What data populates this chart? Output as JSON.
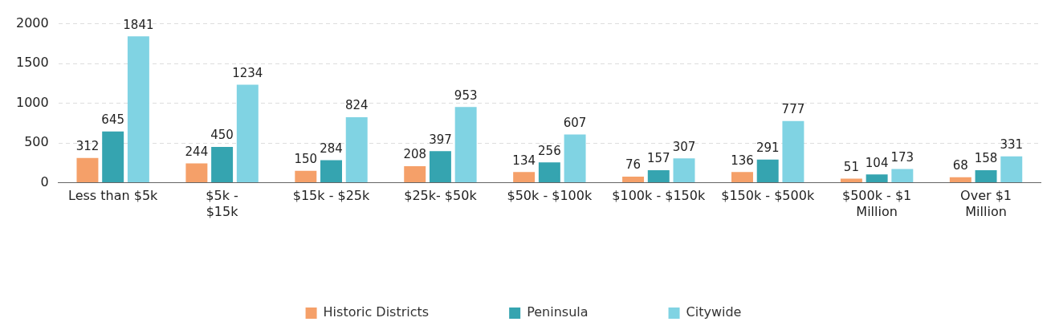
{
  "chart_data": {
    "type": "bar",
    "categories": [
      "Less than $5k",
      "$5k -\n$15k",
      "$15k - $25k",
      "$25k- $50k",
      "$50k - $100k",
      "$100k - $150k",
      "$150k - $500k",
      "$500k - $1\nMillion",
      "Over $1\nMillion"
    ],
    "series": [
      {
        "name": "Historic Districts",
        "color": "#f5a069",
        "values": [
          312,
          244,
          150,
          208,
          134,
          76,
          136,
          51,
          68
        ]
      },
      {
        "name": "Peninsula",
        "color": "#35a4b0",
        "values": [
          645,
          450,
          284,
          397,
          256,
          157,
          291,
          104,
          158
        ]
      },
      {
        "name": "Citywide",
        "color": "#80d3e3",
        "values": [
          1841,
          1234,
          824,
          953,
          607,
          307,
          777,
          173,
          331
        ]
      }
    ],
    "ylim": [
      0,
      2000
    ],
    "yticks": [
      0,
      500,
      1000,
      1500,
      2000
    ],
    "grid": "y",
    "legend": "bottom",
    "data_labels": true
  }
}
